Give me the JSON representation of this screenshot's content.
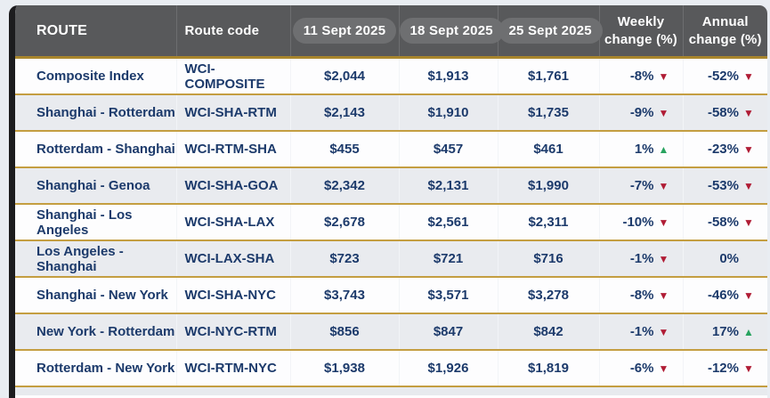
{
  "palette": {
    "page_bg": "#e9edf2",
    "card_left_border": "#1c1c1e",
    "header_bg": "#58595b",
    "header_pill_bg": "#6e6f71",
    "header_underline_gold": "#a9862d",
    "row_divider_gold": "#c49e41",
    "row_bg": "#fdfdfe",
    "row_alt_bg": "#e9ebef",
    "text_navy": "#1c3a6b",
    "trend_down_red": "#b01c35",
    "trend_up_green": "#28a35f"
  },
  "chart_data": {
    "type": "table",
    "title": "",
    "columns": [
      {
        "key": "route",
        "label": "ROUTE",
        "style": "text"
      },
      {
        "key": "code",
        "label": "Route code",
        "style": "text"
      },
      {
        "key": "d1",
        "label": "11 Sept 2025",
        "style": "pill"
      },
      {
        "key": "d2",
        "label": "18 Sept 2025",
        "style": "pill"
      },
      {
        "key": "d3",
        "label": "25 Sept 2025",
        "style": "pill"
      },
      {
        "key": "weekly",
        "label": "Weekly change (%)",
        "style": "change"
      },
      {
        "key": "annual",
        "label": "Annual change (%)",
        "style": "change"
      }
    ],
    "rows": [
      {
        "route": "Composite Index",
        "code": "WCI-COMPOSITE",
        "d1": "$2,044",
        "d2": "$1,913",
        "d3": "$1,761",
        "weekly": "-8%",
        "weekly_trend": "down",
        "annual": "-52%",
        "annual_trend": "down"
      },
      {
        "route": "Shanghai - Rotterdam",
        "code": "WCI-SHA-RTM",
        "d1": "$2,143",
        "d2": "$1,910",
        "d3": "$1,735",
        "weekly": "-9%",
        "weekly_trend": "down",
        "annual": "-58%",
        "annual_trend": "down"
      },
      {
        "route": "Rotterdam - Shanghai",
        "code": "WCI-RTM-SHA",
        "d1": "$455",
        "d2": "$457",
        "d3": "$461",
        "weekly": "1%",
        "weekly_trend": "up",
        "annual": "-23%",
        "annual_trend": "down"
      },
      {
        "route": "Shanghai - Genoa",
        "code": "WCI-SHA-GOA",
        "d1": "$2,342",
        "d2": "$2,131",
        "d3": "$1,990",
        "weekly": "-7%",
        "weekly_trend": "down",
        "annual": "-53%",
        "annual_trend": "down"
      },
      {
        "route": "Shanghai - Los Angeles",
        "code": "WCI-SHA-LAX",
        "d1": "$2,678",
        "d2": "$2,561",
        "d3": "$2,311",
        "weekly": "-10%",
        "weekly_trend": "down",
        "annual": "-58%",
        "annual_trend": "down"
      },
      {
        "route": "Los Angeles - Shanghai",
        "code": "WCI-LAX-SHA",
        "d1": "$723",
        "d2": "$721",
        "d3": "$716",
        "weekly": "-1%",
        "weekly_trend": "down",
        "annual": "0%",
        "annual_trend": null
      },
      {
        "route": "Shanghai - New York",
        "code": "WCI-SHA-NYC",
        "d1": "$3,743",
        "d2": "$3,571",
        "d3": "$3,278",
        "weekly": "-8%",
        "weekly_trend": "down",
        "annual": "-46%",
        "annual_trend": "down"
      },
      {
        "route": "New York - Rotterdam",
        "code": "WCI-NYC-RTM",
        "d1": "$856",
        "d2": "$847",
        "d3": "$842",
        "weekly": "-1%",
        "weekly_trend": "down",
        "annual": "17%",
        "annual_trend": "up"
      },
      {
        "route": "Rotterdam - New York",
        "code": "WCI-RTM-NYC",
        "d1": "$1,938",
        "d2": "$1,926",
        "d3": "$1,819",
        "weekly": "-6%",
        "weekly_trend": "down",
        "annual": "-12%",
        "annual_trend": "down"
      }
    ]
  }
}
